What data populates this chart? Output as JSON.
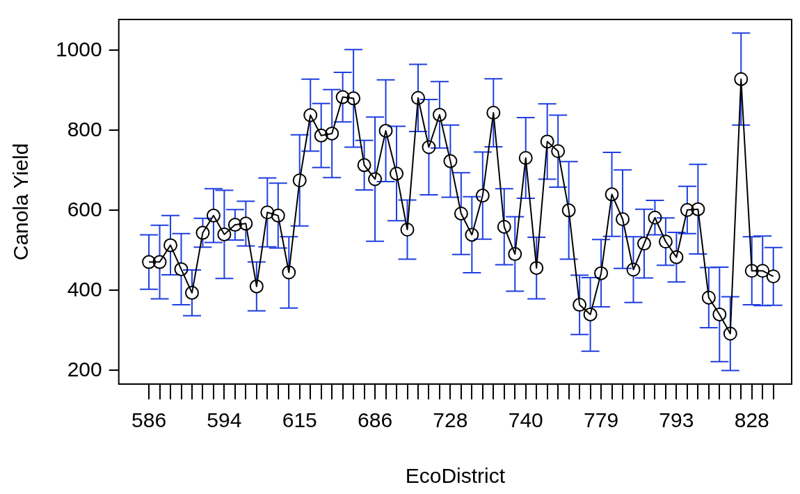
{
  "chart_data": {
    "type": "line",
    "xlabel": "EcoDistrict",
    "ylabel": "Canola Yield",
    "categories": [
      "586",
      null,
      null,
      null,
      null,
      null,
      null,
      "594",
      null,
      null,
      null,
      null,
      null,
      null,
      "615",
      null,
      null,
      null,
      null,
      null,
      null,
      "686",
      null,
      null,
      null,
      null,
      null,
      null,
      "728",
      null,
      null,
      null,
      null,
      null,
      null,
      "740",
      null,
      null,
      null,
      null,
      null,
      null,
      "779",
      null,
      null,
      null,
      null,
      null,
      null,
      "793",
      null,
      null,
      null,
      null,
      null,
      null,
      "828",
      null,
      null
    ],
    "series": [
      {
        "color": "#000000",
        "values": [
          471,
          471,
          513,
          453,
          394,
          544,
          587,
          540,
          564,
          567,
          410,
          595,
          587,
          445,
          675,
          838,
          787,
          792,
          883,
          880,
          713,
          678,
          799,
          692,
          552,
          881,
          758,
          839,
          723,
          592,
          539,
          637,
          844,
          559,
          491,
          731,
          456,
          772,
          748,
          600,
          364,
          340,
          443,
          640,
          578,
          452,
          517,
          582,
          522,
          483,
          601,
          603,
          382,
          340,
          292,
          928,
          449,
          449,
          435
        ],
        "errors": [
          68,
          92,
          74,
          89,
          57,
          36,
          67,
          110,
          38,
          56,
          61,
          86,
          81,
          89,
          114,
          90,
          80,
          110,
          62,
          122,
          62,
          155,
          127,
          118,
          74,
          84,
          119,
          83,
          90,
          102,
          95,
          109,
          85,
          95,
          93,
          101,
          77,
          94,
          90,
          122,
          74,
          92,
          84,
          105,
          123,
          82,
          86,
          43,
          59,
          62,
          59,
          112,
          75,
          118,
          92,
          115,
          85,
          87,
          72
        ]
      }
    ],
    "ylim": [
      166,
      1077
    ],
    "yticks": [
      200,
      400,
      600,
      800,
      1000
    ],
    "grid": false,
    "marker": "circle",
    "line_style": "solid"
  }
}
